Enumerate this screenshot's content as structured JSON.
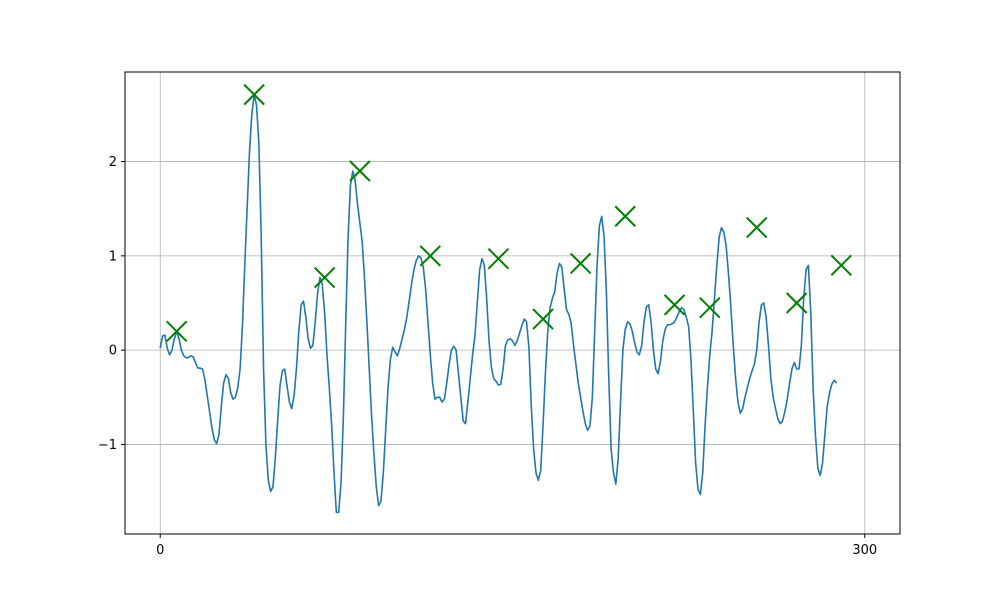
{
  "chart_data": {
    "type": "line",
    "title": "",
    "xlabel": "",
    "ylabel": "",
    "xlim": [
      -15,
      315
    ],
    "ylim": [
      -1.95,
      2.95
    ],
    "grid": true,
    "x_ticks": [
      0,
      300
    ],
    "x_tick_labels": [
      "0",
      "300"
    ],
    "y_ticks": [
      -1,
      0,
      1,
      2
    ],
    "y_tick_labels": [
      "−1",
      "0",
      "1",
      "2"
    ],
    "colors": {
      "line": "#1f77b4",
      "marker": "#008000",
      "grid": "#b0b0b0",
      "axes": "#000000"
    },
    "series": [
      {
        "kind": "line",
        "points": [
          [
            0,
            0.02
          ],
          [
            1,
            0.15
          ],
          [
            2,
            0.16
          ],
          [
            3,
            0.02
          ],
          [
            4,
            -0.05
          ],
          [
            5,
            0.0
          ],
          [
            6,
            0.12
          ],
          [
            7,
            0.2
          ],
          [
            8,
            0.12
          ],
          [
            9,
            0.0
          ],
          [
            10,
            -0.06
          ],
          [
            11,
            -0.08
          ],
          [
            12,
            -0.08
          ],
          [
            13,
            -0.06
          ],
          [
            14,
            -0.07
          ],
          [
            15,
            -0.13
          ],
          [
            16,
            -0.19
          ],
          [
            17,
            -0.19
          ],
          [
            18,
            -0.2
          ],
          [
            19,
            -0.31
          ],
          [
            20,
            -0.48
          ],
          [
            21,
            -0.65
          ],
          [
            22,
            -0.82
          ],
          [
            23,
            -0.95
          ],
          [
            24,
            -0.99
          ],
          [
            25,
            -0.9
          ],
          [
            26,
            -0.6
          ],
          [
            27,
            -0.35
          ],
          [
            28,
            -0.26
          ],
          [
            29,
            -0.3
          ],
          [
            30,
            -0.45
          ],
          [
            31,
            -0.52
          ],
          [
            32,
            -0.5
          ],
          [
            33,
            -0.4
          ],
          [
            34,
            -0.2
          ],
          [
            35,
            0.25
          ],
          [
            36,
            0.9
          ],
          [
            37,
            1.5
          ],
          [
            38,
            2.1
          ],
          [
            39,
            2.5
          ],
          [
            40,
            2.71
          ],
          [
            41,
            2.6
          ],
          [
            42,
            2.2
          ],
          [
            43,
            1.2
          ],
          [
            44,
            -0.2
          ],
          [
            45,
            -1.0
          ],
          [
            46,
            -1.38
          ],
          [
            47,
            -1.5
          ],
          [
            48,
            -1.45
          ],
          [
            49,
            -1.15
          ],
          [
            50,
            -0.75
          ],
          [
            51,
            -0.38
          ],
          [
            52,
            -0.22
          ],
          [
            53,
            -0.2
          ],
          [
            54,
            -0.38
          ],
          [
            55,
            -0.55
          ],
          [
            56,
            -0.62
          ],
          [
            57,
            -0.48
          ],
          [
            58,
            -0.2
          ],
          [
            59,
            0.2
          ],
          [
            60,
            0.48
          ],
          [
            61,
            0.52
          ],
          [
            62,
            0.35
          ],
          [
            63,
            0.12
          ],
          [
            64,
            0.02
          ],
          [
            65,
            0.05
          ],
          [
            66,
            0.3
          ],
          [
            67,
            0.6
          ],
          [
            68,
            0.77
          ],
          [
            69,
            0.7
          ],
          [
            70,
            0.4
          ],
          [
            71,
            -0.05
          ],
          [
            72,
            -0.4
          ],
          [
            73,
            -0.8
          ],
          [
            74,
            -1.3
          ],
          [
            75,
            -1.72
          ],
          [
            76,
            -1.72
          ],
          [
            77,
            -1.4
          ],
          [
            78,
            -0.7
          ],
          [
            79,
            0.3
          ],
          [
            80,
            1.2
          ],
          [
            81,
            1.75
          ],
          [
            82,
            1.9
          ],
          [
            83,
            1.8
          ],
          [
            84,
            1.55
          ],
          [
            85,
            1.35
          ],
          [
            86,
            1.15
          ],
          [
            87,
            0.75
          ],
          [
            88,
            0.3
          ],
          [
            89,
            -0.2
          ],
          [
            90,
            -0.7
          ],
          [
            91,
            -1.1
          ],
          [
            92,
            -1.45
          ],
          [
            93,
            -1.65
          ],
          [
            94,
            -1.6
          ],
          [
            95,
            -1.3
          ],
          [
            96,
            -0.85
          ],
          [
            97,
            -0.4
          ],
          [
            98,
            -0.1
          ],
          [
            99,
            0.03
          ],
          [
            100,
            -0.02
          ],
          [
            101,
            -0.06
          ],
          [
            102,
            0.02
          ],
          [
            103,
            0.12
          ],
          [
            104,
            0.22
          ],
          [
            105,
            0.35
          ],
          [
            106,
            0.52
          ],
          [
            107,
            0.7
          ],
          [
            108,
            0.85
          ],
          [
            109,
            0.95
          ],
          [
            110,
            1.0
          ],
          [
            111,
            0.98
          ],
          [
            112,
            0.88
          ],
          [
            113,
            0.65
          ],
          [
            114,
            0.3
          ],
          [
            115,
            -0.05
          ],
          [
            116,
            -0.35
          ],
          [
            117,
            -0.52
          ],
          [
            118,
            -0.5
          ],
          [
            119,
            -0.5
          ],
          [
            120,
            -0.55
          ],
          [
            121,
            -0.52
          ],
          [
            122,
            -0.35
          ],
          [
            123,
            -0.15
          ],
          [
            124,
            0.0
          ],
          [
            125,
            0.04
          ],
          [
            126,
            0.0
          ],
          [
            127,
            -0.25
          ],
          [
            128,
            -0.5
          ],
          [
            129,
            -0.75
          ],
          [
            130,
            -0.78
          ],
          [
            131,
            -0.55
          ],
          [
            132,
            -0.3
          ],
          [
            133,
            -0.05
          ],
          [
            134,
            0.15
          ],
          [
            135,
            0.5
          ],
          [
            136,
            0.85
          ],
          [
            137,
            0.97
          ],
          [
            138,
            0.9
          ],
          [
            139,
            0.55
          ],
          [
            140,
            0.1
          ],
          [
            141,
            -0.18
          ],
          [
            142,
            -0.3
          ],
          [
            143,
            -0.33
          ],
          [
            144,
            -0.37
          ],
          [
            145,
            -0.36
          ],
          [
            146,
            -0.2
          ],
          [
            147,
            0.05
          ],
          [
            148,
            0.11
          ],
          [
            149,
            0.12
          ],
          [
            150,
            0.1
          ],
          [
            151,
            0.05
          ],
          [
            152,
            0.1
          ],
          [
            153,
            0.18
          ],
          [
            154,
            0.26
          ],
          [
            155,
            0.33
          ],
          [
            156,
            0.3
          ],
          [
            157,
            0.02
          ],
          [
            158,
            -0.6
          ],
          [
            159,
            -1.05
          ],
          [
            160,
            -1.3
          ],
          [
            161,
            -1.38
          ],
          [
            162,
            -1.28
          ],
          [
            163,
            -0.8
          ],
          [
            164,
            -0.25
          ],
          [
            165,
            0.2
          ],
          [
            166,
            0.45
          ],
          [
            167,
            0.55
          ],
          [
            168,
            0.62
          ],
          [
            169,
            0.82
          ],
          [
            170,
            0.92
          ],
          [
            171,
            0.88
          ],
          [
            172,
            0.65
          ],
          [
            173,
            0.43
          ],
          [
            174,
            0.38
          ],
          [
            175,
            0.28
          ],
          [
            176,
            0.05
          ],
          [
            177,
            -0.15
          ],
          [
            178,
            -0.35
          ],
          [
            179,
            -0.5
          ],
          [
            180,
            -0.65
          ],
          [
            181,
            -0.78
          ],
          [
            182,
            -0.85
          ],
          [
            183,
            -0.8
          ],
          [
            184,
            -0.5
          ],
          [
            185,
            0.2
          ],
          [
            186,
            0.9
          ],
          [
            187,
            1.32
          ],
          [
            188,
            1.42
          ],
          [
            189,
            1.2
          ],
          [
            190,
            0.6
          ],
          [
            191,
            -0.3
          ],
          [
            192,
            -1.05
          ],
          [
            193,
            -1.3
          ],
          [
            194,
            -1.42
          ],
          [
            195,
            -1.15
          ],
          [
            196,
            -0.55
          ],
          [
            197,
            0.0
          ],
          [
            198,
            0.22
          ],
          [
            199,
            0.3
          ],
          [
            200,
            0.28
          ],
          [
            201,
            0.2
          ],
          [
            202,
            0.08
          ],
          [
            203,
            -0.02
          ],
          [
            204,
            -0.05
          ],
          [
            205,
            0.05
          ],
          [
            206,
            0.3
          ],
          [
            207,
            0.46
          ],
          [
            208,
            0.48
          ],
          [
            209,
            0.3
          ],
          [
            210,
            0.0
          ],
          [
            211,
            -0.2
          ],
          [
            212,
            -0.25
          ],
          [
            213,
            -0.12
          ],
          [
            214,
            0.1
          ],
          [
            215,
            0.22
          ],
          [
            216,
            0.27
          ],
          [
            217,
            0.27
          ],
          [
            218,
            0.28
          ],
          [
            219,
            0.3
          ],
          [
            220,
            0.35
          ],
          [
            221,
            0.41
          ],
          [
            222,
            0.45
          ],
          [
            223,
            0.43
          ],
          [
            224,
            0.35
          ],
          [
            225,
            0.25
          ],
          [
            226,
            -0.1
          ],
          [
            227,
            -0.65
          ],
          [
            228,
            -1.2
          ],
          [
            229,
            -1.48
          ],
          [
            230,
            -1.53
          ],
          [
            231,
            -1.3
          ],
          [
            232,
            -0.8
          ],
          [
            233,
            -0.4
          ],
          [
            234,
            -0.05
          ],
          [
            235,
            0.2
          ],
          [
            236,
            0.55
          ],
          [
            237,
            0.9
          ],
          [
            238,
            1.2
          ],
          [
            239,
            1.3
          ],
          [
            240,
            1.25
          ],
          [
            241,
            1.1
          ],
          [
            242,
            0.8
          ],
          [
            243,
            0.45
          ],
          [
            244,
            0.05
          ],
          [
            245,
            -0.3
          ],
          [
            246,
            -0.55
          ],
          [
            247,
            -0.67
          ],
          [
            248,
            -0.62
          ],
          [
            249,
            -0.5
          ],
          [
            250,
            -0.4
          ],
          [
            251,
            -0.3
          ],
          [
            252,
            -0.22
          ],
          [
            253,
            -0.15
          ],
          [
            254,
            0.0
          ],
          [
            255,
            0.3
          ],
          [
            256,
            0.48
          ],
          [
            257,
            0.5
          ],
          [
            258,
            0.35
          ],
          [
            259,
            0.05
          ],
          [
            260,
            -0.3
          ],
          [
            261,
            -0.5
          ],
          [
            262,
            -0.62
          ],
          [
            263,
            -0.73
          ],
          [
            264,
            -0.78
          ],
          [
            265,
            -0.75
          ],
          [
            266,
            -0.65
          ],
          [
            267,
            -0.52
          ],
          [
            268,
            -0.35
          ],
          [
            269,
            -0.2
          ],
          [
            270,
            -0.13
          ],
          [
            271,
            -0.2
          ],
          [
            272,
            -0.2
          ],
          [
            273,
            0.05
          ],
          [
            274,
            0.55
          ],
          [
            275,
            0.85
          ],
          [
            276,
            0.9
          ],
          [
            277,
            0.4
          ],
          [
            278,
            -0.4
          ],
          [
            279,
            -0.9
          ],
          [
            280,
            -1.25
          ],
          [
            281,
            -1.33
          ],
          [
            282,
            -1.2
          ],
          [
            283,
            -0.9
          ],
          [
            284,
            -0.6
          ],
          [
            285,
            -0.45
          ],
          [
            286,
            -0.36
          ],
          [
            287,
            -0.32
          ],
          [
            288,
            -0.35
          ]
        ]
      },
      {
        "kind": "marker",
        "marker": "x",
        "points": [
          [
            7,
            0.2
          ],
          [
            40,
            2.71
          ],
          [
            70,
            0.77
          ],
          [
            85,
            1.9
          ],
          [
            115,
            1.0
          ],
          [
            144,
            0.97
          ],
          [
            163,
            0.33
          ],
          [
            179,
            0.92
          ],
          [
            198,
            1.42
          ],
          [
            219,
            0.48
          ],
          [
            234,
            0.45
          ],
          [
            254,
            1.3
          ],
          [
            271,
            0.5
          ],
          [
            290,
            0.9
          ]
        ]
      }
    ]
  }
}
